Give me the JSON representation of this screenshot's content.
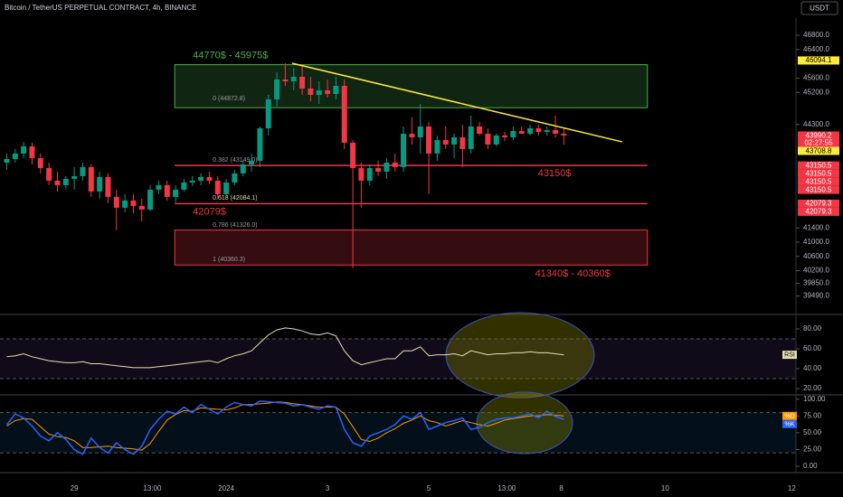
{
  "chart_data": [
    {
      "type": "candlestick",
      "title": "Bitcoin / TetherUS PERPETUAL CONTRACT, 4h, BINANCE",
      "currency": "USDT",
      "up_color": "#089981",
      "down_color": "#f23645",
      "xlim": [
        -0.8,
        93.5
      ],
      "xticks": [
        {
          "value": 8,
          "label": "29"
        },
        {
          "value": 17.25,
          "label": "13:00"
        },
        {
          "value": 26,
          "label": "2024"
        },
        {
          "value": 38,
          "label": "3"
        },
        {
          "value": 50,
          "label": "5"
        },
        {
          "value": 59.25,
          "label": "13:00"
        },
        {
          "value": 65.7,
          "label": "8"
        },
        {
          "value": 78,
          "label": "10"
        },
        {
          "value": 93,
          "label": "12"
        }
      ],
      "ylim": [
        39050,
        47080
      ],
      "yticks": [
        {
          "value": 46800,
          "label": "46800.0"
        },
        {
          "value": 46400,
          "label": "46400.0"
        },
        {
          "value": 45600,
          "label": "45600.0"
        },
        {
          "value": 45200,
          "label": "45200.0"
        },
        {
          "value": 44300,
          "label": "44300.0"
        },
        {
          "value": 41400,
          "label": "41400.0"
        },
        {
          "value": 41000,
          "label": "41000.0"
        },
        {
          "value": 40600,
          "label": "40600.0"
        },
        {
          "value": 40200,
          "label": "40200.0"
        },
        {
          "value": 39850,
          "label": "39850.0"
        },
        {
          "value": 39490,
          "label": "39490.0"
        }
      ],
      "grid": false,
      "x": [
        0,
        1,
        2,
        3,
        4,
        5,
        6,
        7,
        8,
        9,
        10,
        11,
        12,
        13,
        14,
        15,
        16,
        17,
        18,
        19,
        20,
        21,
        22,
        23,
        24,
        25,
        26,
        27,
        28,
        29,
        30,
        31,
        32,
        33,
        34,
        35,
        36,
        37,
        38,
        39,
        40,
        41,
        42,
        43,
        44,
        45,
        46,
        47,
        48,
        49,
        50,
        51,
        52,
        53,
        54,
        55,
        56,
        57,
        58,
        59,
        60,
        61,
        62,
        63,
        64,
        65,
        66
      ],
      "open": [
        43231,
        43332,
        43485,
        43687,
        43358,
        43079,
        42725,
        42598,
        42776,
        42851,
        43105,
        42421,
        42827,
        42269,
        41966,
        42168,
        42016,
        41915,
        42472,
        42598,
        42269,
        42472,
        42674,
        42725,
        42827,
        42725,
        42345,
        42674,
        42928,
        43181,
        43282,
        44193,
        45004,
        45561,
        45510,
        45636,
        45308,
        45130,
        45257,
        45156,
        45383,
        43788,
        43079,
        42725,
        43079,
        42978,
        43231,
        43105,
        44041,
        43940,
        44244,
        43485,
        43864,
        43738,
        43940,
        43611,
        44244,
        44041,
        43738,
        43991,
        43940,
        44117,
        44041,
        44193,
        44092,
        44143,
        44041
      ],
      "high": [
        43485,
        43611,
        43814,
        43788,
        43485,
        43231,
        42978,
        42851,
        43105,
        43231,
        43181,
        42978,
        42928,
        42472,
        42345,
        42345,
        42219,
        42598,
        42725,
        42725,
        42598,
        42776,
        42851,
        42928,
        42978,
        42851,
        42776,
        43029,
        43282,
        43485,
        44244,
        45130,
        45763,
        46017,
        45890,
        45965,
        45636,
        45510,
        45560,
        45636,
        45560,
        43864,
        43231,
        43181,
        43282,
        43358,
        43485,
        44244,
        44497,
        44877,
        44371,
        43991,
        44244,
        44041,
        44295,
        44548,
        44371,
        44193,
        44041,
        44092,
        44244,
        44244,
        44295,
        44295,
        44244,
        44548,
        44193
      ],
      "low": [
        43029,
        43231,
        43358,
        43180,
        42927,
        42598,
        42421,
        42472,
        42472,
        42725,
        42269,
        42219,
        42092,
        41333,
        41839,
        41814,
        41586,
        41864,
        42345,
        42168,
        42118,
        42421,
        42573,
        42598,
        42624,
        42219,
        42269,
        42598,
        42851,
        42978,
        43105,
        43991,
        44801,
        45383,
        45257,
        45130,
        44953,
        44877,
        45054,
        45004,
        43611,
        40270,
        41966,
        42598,
        42851,
        42776,
        42978,
        42978,
        43738,
        43485,
        42345,
        43282,
        43611,
        43358,
        43105,
        43485,
        43991,
        43611,
        43687,
        43839,
        43864,
        44041,
        43991,
        43991,
        43991,
        43940,
        43738
      ],
      "close": [
        43332,
        43485,
        43687,
        43358,
        43079,
        42725,
        42598,
        42776,
        42851,
        43105,
        42421,
        42827,
        42269,
        41966,
        42168,
        42016,
        41915,
        42472,
        42598,
        42269,
        42472,
        42674,
        42725,
        42827,
        42725,
        42345,
        42674,
        42928,
        43181,
        43282,
        44193,
        45004,
        45561,
        45510,
        45636,
        45308,
        45130,
        45257,
        45156,
        45383,
        43788,
        43079,
        42725,
        43079,
        42978,
        43231,
        43105,
        44041,
        43940,
        44244,
        43485,
        43864,
        43738,
        43940,
        43611,
        44244,
        44041,
        43738,
        43991,
        43940,
        44117,
        44041,
        44193,
        44092,
        44143,
        44041,
        43990
      ],
      "trendline": {
        "x": [
          33.8,
          72.9
        ],
        "values": [
          46017,
          43814
        ],
        "color": "#ffeb3b"
      },
      "zones": [
        {
          "low": 44770,
          "high": 45975,
          "x_range": [
            19.9,
            75.9
          ],
          "label": "44770$ - 45975$",
          "color": "#4caf50"
        },
        {
          "low": 40360,
          "high": 41340,
          "x_range": [
            19.9,
            75.9
          ],
          "label": "41340$ - 40360$",
          "color": "#f23645"
        }
      ],
      "levels": [
        {
          "value": 43150,
          "label": "43150$",
          "x_range": [
            19.9,
            75.9
          ],
          "color": "#f23645"
        },
        {
          "value": 42079,
          "label": "42079$",
          "x_range": [
            19.9,
            75.9
          ],
          "color": "#f23645"
        }
      ],
      "fib": [
        {
          "value": 44872.8,
          "label": "0 (44872.8)"
        },
        {
          "value": 43149,
          "label": "0.382 (43149.0)"
        },
        {
          "value": 42084.1,
          "label": "0.618 (42084.1)"
        },
        {
          "value": 41326,
          "label": "0.786 (41326.0)"
        },
        {
          "value": 40360.3,
          "label": "1 (40360.3)"
        }
      ],
      "price_tags": [
        {
          "value": 46094.1,
          "label": "46094.1",
          "color": "#ffeb3b"
        },
        {
          "value": 43990.2,
          "label": "43990.2",
          "sub": "02:27:55",
          "color": "#f23645"
        },
        {
          "value": 43708.8,
          "label": "43708.8",
          "color": "#ffeb3b"
        },
        {
          "value": 43150.5,
          "label": "43150.5",
          "color": "#f23645"
        },
        {
          "value": 43150.5,
          "label": "43150.5",
          "color": "#f23645"
        },
        {
          "value": 43150.5,
          "label": "43150.5",
          "color": "#f23645"
        },
        {
          "value": 43150.5,
          "label": "43150.5",
          "color": "#f23645"
        },
        {
          "value": 42079.3,
          "label": "42079.3",
          "color": "#f23645"
        },
        {
          "value": 42079.3,
          "label": "42079.3",
          "color": "#f23645"
        }
      ]
    },
    {
      "type": "line",
      "ylim": [
        15.5,
        92.7
      ],
      "yticks": [
        {
          "value": 80,
          "label": "80.00"
        },
        {
          "value": 60,
          "label": "60.00"
        },
        {
          "value": 40,
          "label": "40.00"
        },
        {
          "value": 20,
          "label": "20.00"
        }
      ],
      "band": [
        30,
        70
      ],
      "series": [
        {
          "name": "RSI",
          "color": "#e6dfb3",
          "values": [
            52,
            53,
            55,
            52,
            50,
            48,
            47,
            46,
            46,
            47,
            45,
            45,
            44,
            43,
            42,
            41,
            41,
            41,
            42,
            43,
            44,
            45,
            46,
            47,
            48,
            46,
            50,
            53,
            55,
            58,
            66,
            74,
            79,
            81,
            80,
            78,
            75,
            74,
            76,
            73,
            58,
            48,
            44,
            46,
            48,
            50,
            50,
            58,
            58,
            62,
            53,
            54,
            54,
            55,
            53,
            58,
            56,
            54,
            55,
            55,
            56,
            56,
            57,
            56,
            56,
            55,
            54
          ]
        }
      ]
    },
    {
      "type": "line",
      "ylim": [
        -8,
        105
      ],
      "yticks": [
        {
          "value": 100,
          "label": "100.00"
        },
        {
          "value": 75,
          "label": "75.00"
        },
        {
          "value": 50,
          "label": "50.00"
        },
        {
          "value": 25,
          "label": "25.00"
        },
        {
          "value": 0,
          "label": "0.00"
        }
      ],
      "band": [
        20,
        80
      ],
      "series": [
        {
          "name": "%D",
          "color": "#ff9800",
          "values": [
            60,
            68,
            71,
            70,
            59,
            48,
            44,
            43,
            38,
            28,
            28,
            29,
            30,
            28,
            27,
            26,
            24,
            34,
            52,
            69,
            77,
            83,
            82,
            87,
            86,
            85,
            84,
            87,
            92,
            92,
            93,
            94,
            96,
            95,
            93,
            92,
            90,
            88,
            88,
            88,
            78,
            59,
            40,
            37,
            42,
            50,
            56,
            64,
            69,
            75,
            68,
            65,
            60,
            64,
            68,
            65,
            62,
            60,
            64,
            69,
            71,
            73,
            75,
            75,
            77,
            76,
            75
          ]
        },
        {
          "name": "%K",
          "color": "#2962ff",
          "values": [
            62,
            78,
            72,
            60,
            45,
            38,
            50,
            40,
            25,
            18,
            42,
            28,
            20,
            35,
            25,
            18,
            30,
            55,
            70,
            82,
            78,
            88,
            80,
            92,
            85,
            78,
            88,
            95,
            92,
            90,
            97,
            96,
            95,
            94,
            90,
            92,
            88,
            85,
            90,
            88,
            55,
            35,
            30,
            45,
            50,
            55,
            62,
            75,
            70,
            80,
            55,
            60,
            65,
            68,
            72,
            55,
            58,
            65,
            70,
            72,
            72,
            75,
            78,
            72,
            82,
            74,
            70
          ]
        }
      ]
    }
  ]
}
